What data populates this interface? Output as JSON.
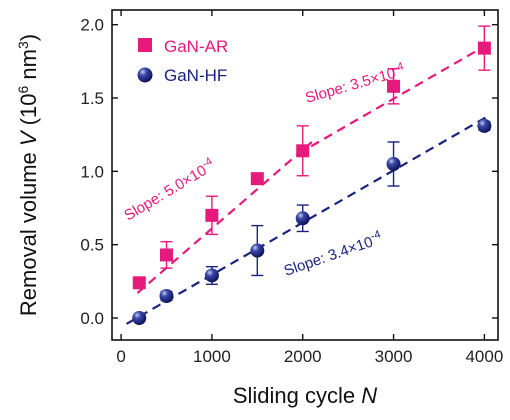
{
  "chart_data": {
    "type": "scatter",
    "xlabel": "Sliding cycle N",
    "ylabel": "Removal volume V (10^6 nm^3)",
    "xlim": [
      -100,
      4150
    ],
    "ylim": [
      -0.15,
      2.1
    ],
    "xticks": [
      0,
      1000,
      2000,
      3000,
      4000
    ],
    "xtick_labels": [
      "0",
      "1000",
      "2000",
      "3000",
      "4000"
    ],
    "yticks": [
      0.0,
      0.5,
      1.0,
      1.5,
      2.0
    ],
    "ytick_labels": [
      "0.0",
      "0.5",
      "1.0",
      "1.5",
      "2.0"
    ],
    "legend_position": "top-left",
    "series": [
      {
        "name": "GaN-AR",
        "marker": "square",
        "color": "#e6197d",
        "x": [
          200,
          500,
          1000,
          1500,
          2000,
          3000,
          4000
        ],
        "y": [
          0.24,
          0.43,
          0.7,
          0.95,
          1.14,
          1.58,
          1.84
        ],
        "err": [
          0.02,
          0.09,
          0.13,
          0.02,
          0.17,
          0.12,
          0.15
        ],
        "fits": [
          {
            "x": [
              180,
              2100
            ],
            "y": [
              0.17,
              1.2
            ],
            "slope_label": "Slope: 5.0×10",
            "exponent": "-4"
          },
          {
            "x": [
              1950,
              4050
            ],
            "y": [
              1.12,
              1.87
            ],
            "slope_label": "Slope: 3.5×10",
            "exponent": "-4"
          }
        ]
      },
      {
        "name": "GaN-HF",
        "marker": "sphere",
        "color": "#1a237e",
        "x": [
          200,
          500,
          1000,
          1500,
          2000,
          3000,
          4000
        ],
        "y": [
          0.0,
          0.15,
          0.29,
          0.46,
          0.68,
          1.05,
          1.31
        ],
        "err": [
          0.01,
          0.03,
          0.06,
          0.17,
          0.09,
          0.15,
          0.03
        ],
        "fits": [
          {
            "x": [
              60,
              4050
            ],
            "y": [
              -0.04,
              1.38
            ],
            "slope_label": "Slope: 3.4×10",
            "exponent": "-4"
          }
        ]
      }
    ]
  }
}
